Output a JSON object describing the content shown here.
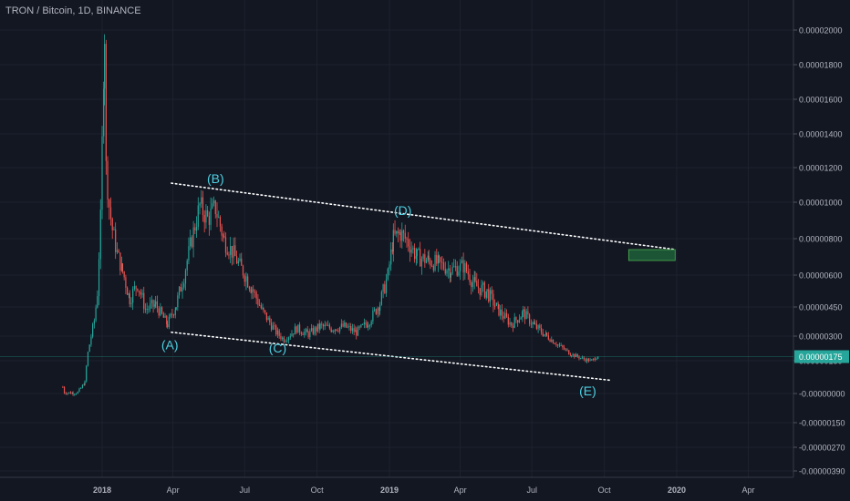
{
  "header": {
    "title": "TRON / Bitcoin, 1D, BINANCE"
  },
  "colors": {
    "background": "#131722",
    "up": "#26a69a",
    "down": "#ef5350",
    "axis_text": "#b2b5be",
    "annotation": "#4dd0e1",
    "line": "#ffffff",
    "price_label_bg": "#26a69a",
    "target_box": "#1f5f3a"
  },
  "chart_data": {
    "type": "candlestick",
    "x_ticks": [
      "2018",
      "Apr",
      "Jul",
      "Oct",
      "2019",
      "Apr",
      "Jul",
      "Oct",
      "2020",
      "Apr"
    ],
    "x_tick_dates": [
      "2018-01-01",
      "2018-04-01",
      "2018-07-01",
      "2018-10-01",
      "2019-01-01",
      "2019-04-01",
      "2019-07-01",
      "2019-10-01",
      "2020-01-01",
      "2020-04-01"
    ],
    "y_ticks": [
      "0.00002000",
      "0.00001800",
      "0.00001600",
      "0.00001400",
      "0.00001200",
      "0.00001000",
      "0.00000800",
      "0.00000600",
      "0.00000450",
      "0.00000300",
      "0.00000150",
      "-0.00000000",
      "-0.00000150",
      "-0.00000270",
      "-0.00000390"
    ],
    "last_price_label": "0.00000175",
    "price_series": [
      [
        "2017-11-12",
        3e-07
      ],
      [
        "2017-11-14",
        5e-08
      ],
      [
        "2017-11-25",
        2e-08
      ],
      [
        "2017-12-01",
        5e-08
      ],
      [
        "2017-12-10",
        5e-07
      ],
      [
        "2017-12-14",
        2e-06
      ],
      [
        "2017-12-18",
        3e-06
      ],
      [
        "2017-12-22",
        3.8e-06
      ],
      [
        "2017-12-26",
        5.2e-06
      ],
      [
        "2017-12-30",
        9e-06
      ],
      [
        "2018-01-04",
        2e-05
      ],
      [
        "2018-01-06",
        1.2e-05
      ],
      [
        "2018-01-10",
        9.8e-06
      ],
      [
        "2018-01-14",
        8.5e-06
      ],
      [
        "2018-01-20",
        7.2e-06
      ],
      [
        "2018-01-27",
        6.2e-06
      ],
      [
        "2018-02-05",
        4.9e-06
      ],
      [
        "2018-02-15",
        5.6e-06
      ],
      [
        "2018-02-25",
        4.4e-06
      ],
      [
        "2018-03-10",
        4.6e-06
      ],
      [
        "2018-03-25",
        3.6e-06
      ],
      [
        "2018-04-05",
        4.6e-06
      ],
      [
        "2018-04-15",
        6e-06
      ],
      [
        "2018-04-25",
        8e-06
      ],
      [
        "2018-05-05",
        9.8e-06
      ],
      [
        "2018-05-15",
        9.1e-06
      ],
      [
        "2018-05-25",
        9.7e-06
      ],
      [
        "2018-06-05",
        7.9e-06
      ],
      [
        "2018-06-15",
        7.3e-06
      ],
      [
        "2018-06-25",
        6.5e-06
      ],
      [
        "2018-07-10",
        5.4e-06
      ],
      [
        "2018-07-25",
        4.2e-06
      ],
      [
        "2018-08-10",
        3.2e-06
      ],
      [
        "2018-08-20",
        2.8e-06
      ],
      [
        "2018-09-05",
        3.4e-06
      ],
      [
        "2018-09-20",
        3.1e-06
      ],
      [
        "2018-10-05",
        3.5e-06
      ],
      [
        "2018-10-20",
        3.4e-06
      ],
      [
        "2018-11-05",
        3.5e-06
      ],
      [
        "2018-11-20",
        3.2e-06
      ],
      [
        "2018-12-05",
        3.7e-06
      ],
      [
        "2018-12-20",
        4.7e-06
      ],
      [
        "2018-12-30",
        6e-06
      ],
      [
        "2019-01-06",
        8e-06
      ],
      [
        "2019-01-15",
        8.3e-06
      ],
      [
        "2019-01-25",
        7.8e-06
      ],
      [
        "2019-02-05",
        7e-06
      ],
      [
        "2019-02-20",
        6.8e-06
      ],
      [
        "2019-03-05",
        6.6e-06
      ],
      [
        "2019-03-20",
        6.3e-06
      ],
      [
        "2019-04-05",
        6.5e-06
      ],
      [
        "2019-04-20",
        5.5e-06
      ],
      [
        "2019-05-05",
        5.2e-06
      ],
      [
        "2019-05-20",
        4.3e-06
      ],
      [
        "2019-06-05",
        3.6e-06
      ],
      [
        "2019-06-20",
        4.2e-06
      ],
      [
        "2019-07-05",
        3.5e-06
      ],
      [
        "2019-07-20",
        3e-06
      ],
      [
        "2019-08-05",
        2.4e-06
      ],
      [
        "2019-08-20",
        1.9e-06
      ],
      [
        "2019-09-05",
        1.6e-06
      ],
      [
        "2019-09-15",
        1.5e-06
      ],
      [
        "2019-09-25",
        1.9e-06
      ]
    ],
    "trendlines": [
      {
        "name": "upper",
        "from": [
          "2018-03-30",
          1.11e-05
        ],
        "to": [
          "2019-12-31",
          7.4e-06
        ]
      },
      {
        "name": "lower",
        "from": [
          "2018-03-30",
          3.2e-06
        ],
        "to": [
          "2019-10-10",
          6e-07
        ]
      }
    ],
    "annotations": [
      {
        "label": "(A)",
        "date": "2018-03-28",
        "value": 2.2e-06
      },
      {
        "label": "(B)",
        "date": "2018-05-25",
        "value": 1.11e-05
      },
      {
        "label": "(C)",
        "date": "2018-08-12",
        "value": 2e-06
      },
      {
        "label": "(D)",
        "date": "2019-01-18",
        "value": 9.3e-06
      },
      {
        "label": "(E)",
        "date": "2019-09-10",
        "value": -1e-07
      }
    ],
    "target_box": {
      "date_from": "2019-11-01",
      "date_to": "2019-12-30",
      "value_top": 7.4e-06,
      "value_bottom": 6.8e-06
    }
  }
}
